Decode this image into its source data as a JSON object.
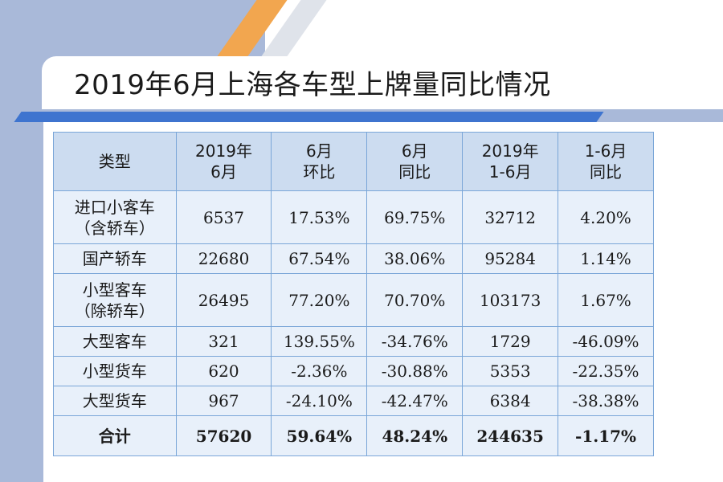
{
  "title": "2019年6月上海各车型上牌量同比情况",
  "table": {
    "headers": [
      {
        "lines": [
          "类型"
        ]
      },
      {
        "lines": [
          "2019年",
          "6月"
        ]
      },
      {
        "lines": [
          "6月",
          "环比"
        ]
      },
      {
        "lines": [
          "6月",
          "同比"
        ]
      },
      {
        "lines": [
          "2019年",
          "1-6月"
        ]
      },
      {
        "lines": [
          "1-6月",
          "同比"
        ]
      }
    ],
    "rows": [
      {
        "type_lines": [
          "进口小客车",
          "（含轿车）"
        ],
        "june": "6537",
        "mom": "17.53%",
        "yoy": "69.75%",
        "ytd": "32712",
        "ytd_yoy": "4.20%"
      },
      {
        "type_lines": [
          "国产轿车"
        ],
        "june": "22680",
        "mom": "67.54%",
        "yoy": "38.06%",
        "ytd": "95284",
        "ytd_yoy": "1.14%"
      },
      {
        "type_lines": [
          "小型客车",
          "（除轿车）"
        ],
        "june": "26495",
        "mom": "77.20%",
        "yoy": "70.70%",
        "ytd": "103173",
        "ytd_yoy": "1.67%"
      },
      {
        "type_lines": [
          "大型客车"
        ],
        "june": "321",
        "mom": "139.55%",
        "yoy": "-34.76%",
        "ytd": "1729",
        "ytd_yoy": "-46.09%"
      },
      {
        "type_lines": [
          "小型货车"
        ],
        "june": "620",
        "mom": "-2.36%",
        "yoy": "-30.88%",
        "ytd": "5353",
        "ytd_yoy": "-22.35%"
      },
      {
        "type_lines": [
          "大型货车"
        ],
        "june": "967",
        "mom": "-24.10%",
        "yoy": "-42.47%",
        "ytd": "6384",
        "ytd_yoy": "-38.38%"
      }
    ],
    "total": {
      "label": "合计",
      "june": "57620",
      "mom": "59.64%",
      "yoy": "48.24%",
      "ytd": "244635",
      "ytd_yoy": "-1.17%"
    }
  },
  "colors": {
    "background_panel": "#a9b9d9",
    "accent_orange": "#f2a64f",
    "title_underline": "#3e74cf",
    "header_fill": "#ccdcf0",
    "cell_fill": "#e8f0fa",
    "border": "#7aa6d8"
  }
}
